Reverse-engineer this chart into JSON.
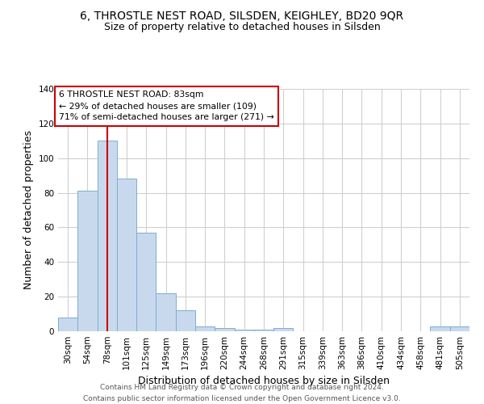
{
  "title": "6, THROSTLE NEST ROAD, SILSDEN, KEIGHLEY, BD20 9QR",
  "subtitle": "Size of property relative to detached houses in Silsden",
  "xlabel": "Distribution of detached houses by size in Silsden",
  "ylabel": "Number of detached properties",
  "categories": [
    "30sqm",
    "54sqm",
    "78sqm",
    "101sqm",
    "125sqm",
    "149sqm",
    "173sqm",
    "196sqm",
    "220sqm",
    "244sqm",
    "268sqm",
    "291sqm",
    "315sqm",
    "339sqm",
    "363sqm",
    "386sqm",
    "410sqm",
    "434sqm",
    "458sqm",
    "481sqm",
    "505sqm"
  ],
  "values": [
    8,
    81,
    110,
    88,
    57,
    22,
    12,
    3,
    2,
    1,
    1,
    2,
    0,
    0,
    0,
    0,
    0,
    0,
    0,
    3,
    3
  ],
  "bar_color": "#c9d9ed",
  "bar_edge_color": "#7aaed0",
  "red_line_x": 2,
  "red_line_label": "6 THROSTLE NEST ROAD: 83sqm",
  "annotation_line1": "← 29% of detached houses are smaller (109)",
  "annotation_line2": "71% of semi-detached houses are larger (271) →",
  "annotation_box_color": "#ffffff",
  "annotation_box_edge": "#cc0000",
  "ylim": [
    0,
    140
  ],
  "yticks": [
    0,
    20,
    40,
    60,
    80,
    100,
    120,
    140
  ],
  "grid_color": "#d0d0d0",
  "background_color": "#ffffff",
  "footer_line1": "Contains HM Land Registry data © Crown copyright and database right 2024.",
  "footer_line2": "Contains public sector information licensed under the Open Government Licence v3.0.",
  "title_fontsize": 10,
  "subtitle_fontsize": 9,
  "axis_label_fontsize": 9,
  "tick_fontsize": 7.5,
  "footer_fontsize": 6.5
}
